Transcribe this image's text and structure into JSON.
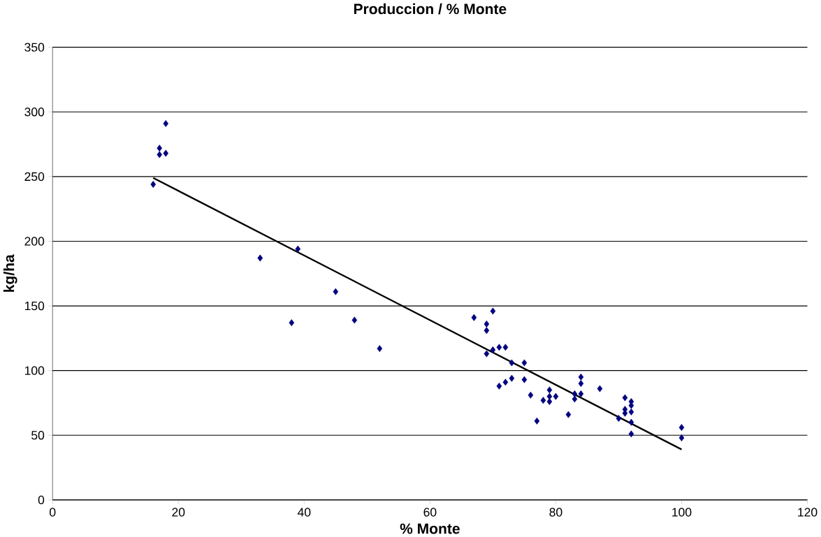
{
  "chart_data": {
    "type": "scatter",
    "title": "Produccion / % Monte",
    "xlabel": "% Monte",
    "ylabel": "kg/ha",
    "xlim": [
      0,
      120
    ],
    "ylim": [
      0,
      350
    ],
    "xticks": [
      0,
      20,
      40,
      60,
      80,
      100,
      120
    ],
    "yticks": [
      0,
      50,
      100,
      150,
      200,
      250,
      300,
      350
    ],
    "grid": "y",
    "marker": "diamond",
    "series": [
      {
        "color": "#000080",
        "x": [
          16,
          17,
          17,
          18,
          18,
          33,
          39,
          38,
          45,
          48,
          52,
          67,
          70,
          69,
          69,
          69,
          70,
          71,
          72,
          73,
          75,
          71,
          72,
          73,
          75,
          76,
          77,
          78,
          79,
          79,
          79,
          80,
          82,
          83,
          83,
          84,
          84,
          84,
          87,
          90,
          91,
          91,
          91,
          92,
          92,
          92,
          92,
          92,
          100,
          100
        ],
        "values": [
          244,
          272,
          267,
          268,
          291,
          187,
          194,
          137,
          161,
          139,
          117,
          141,
          146,
          136,
          131,
          113,
          116,
          118,
          118,
          106,
          106,
          88,
          91,
          94,
          93,
          81,
          61,
          77,
          85,
          80,
          76,
          80,
          66,
          82,
          78,
          95,
          90,
          82,
          86,
          63,
          79,
          70,
          67,
          76,
          73,
          68,
          60,
          51,
          56,
          48
        ]
      },
      {
        "type": "line",
        "color": "#000000",
        "marker": "none",
        "x": [
          16,
          100
        ],
        "values": [
          249,
          39
        ]
      }
    ]
  }
}
